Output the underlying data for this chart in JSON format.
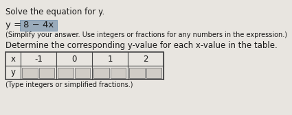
{
  "line1": "Solve the equation for y.",
  "line2_y": "y = ",
  "line2_boxed": "8 − 4x",
  "line3": "(Simplify your answer. Use integers or fractions for any numbers in the expression.)",
  "line4": "Determine the corresponding y-value for each x-value in the table.",
  "line5": "(Type integers or simplified fractions.)",
  "table_x_values": [
    "-1",
    "0",
    "1",
    "2"
  ],
  "bg_color": "#e8e5e0",
  "text_color": "#1a1a1a",
  "highlight_color": "#9aabbb",
  "table_bg": "#e8e5e0",
  "inner_box_color": "#d0ccc6",
  "table_line_color": "#444444",
  "fs_main": 8.5,
  "fs_small": 7.0,
  "fs_eq": 9.5
}
